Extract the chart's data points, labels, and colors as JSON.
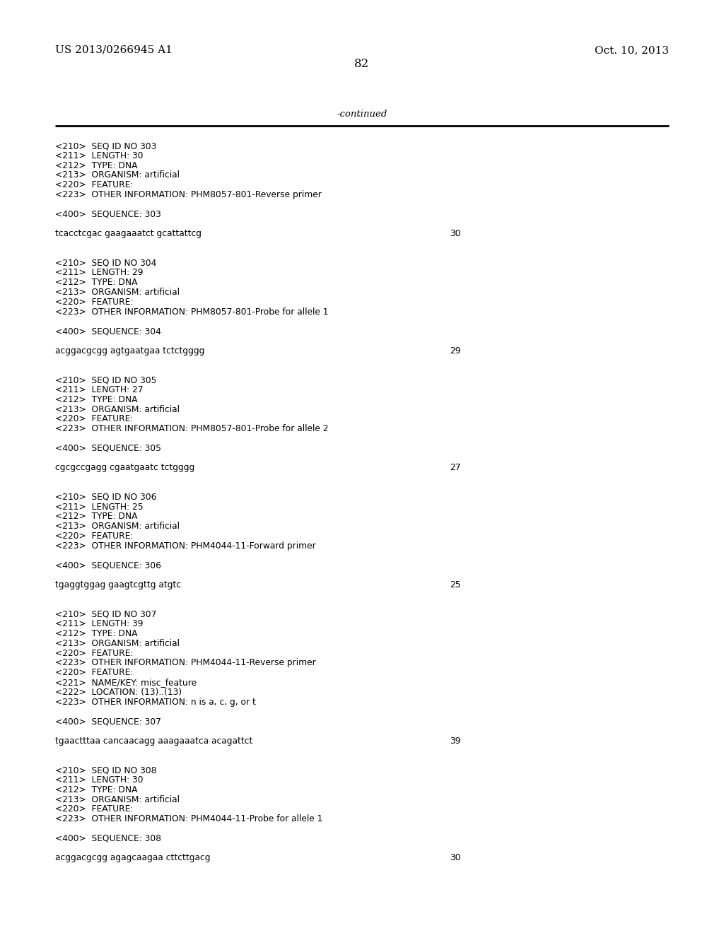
{
  "background_color": "#ffffff",
  "top_left_text": "US 2013/0266945 A1",
  "top_right_text": "Oct. 10, 2013",
  "page_number": "82",
  "continued_text": "-continued",
  "content_lines": [
    [
      "<210>  SEQ ID NO 303",
      ""
    ],
    [
      "<211>  LENGTH: 30",
      ""
    ],
    [
      "<212>  TYPE: DNA",
      ""
    ],
    [
      "<213>  ORGANISM: artificial",
      ""
    ],
    [
      "<220>  FEATURE:",
      ""
    ],
    [
      "<223>  OTHER INFORMATION: PHM8057-801-Reverse primer",
      ""
    ],
    [
      "",
      ""
    ],
    [
      "<400>  SEQUENCE: 303",
      ""
    ],
    [
      "",
      ""
    ],
    [
      "tcacctcgac gaagaaatct gcattattcg",
      "30"
    ],
    [
      "",
      ""
    ],
    [
      "",
      ""
    ],
    [
      "<210>  SEQ ID NO 304",
      ""
    ],
    [
      "<211>  LENGTH: 29",
      ""
    ],
    [
      "<212>  TYPE: DNA",
      ""
    ],
    [
      "<213>  ORGANISM: artificial",
      ""
    ],
    [
      "<220>  FEATURE:",
      ""
    ],
    [
      "<223>  OTHER INFORMATION: PHM8057-801-Probe for allele 1",
      ""
    ],
    [
      "",
      ""
    ],
    [
      "<400>  SEQUENCE: 304",
      ""
    ],
    [
      "",
      ""
    ],
    [
      "acggacgcgg agtgaatgaa tctctgggg",
      "29"
    ],
    [
      "",
      ""
    ],
    [
      "",
      ""
    ],
    [
      "<210>  SEQ ID NO 305",
      ""
    ],
    [
      "<211>  LENGTH: 27",
      ""
    ],
    [
      "<212>  TYPE: DNA",
      ""
    ],
    [
      "<213>  ORGANISM: artificial",
      ""
    ],
    [
      "<220>  FEATURE:",
      ""
    ],
    [
      "<223>  OTHER INFORMATION: PHM8057-801-Probe for allele 2",
      ""
    ],
    [
      "",
      ""
    ],
    [
      "<400>  SEQUENCE: 305",
      ""
    ],
    [
      "",
      ""
    ],
    [
      "cgcgccgagg cgaatgaatc tctgggg",
      "27"
    ],
    [
      "",
      ""
    ],
    [
      "",
      ""
    ],
    [
      "<210>  SEQ ID NO 306",
      ""
    ],
    [
      "<211>  LENGTH: 25",
      ""
    ],
    [
      "<212>  TYPE: DNA",
      ""
    ],
    [
      "<213>  ORGANISM: artificial",
      ""
    ],
    [
      "<220>  FEATURE:",
      ""
    ],
    [
      "<223>  OTHER INFORMATION: PHM4044-11-Forward primer",
      ""
    ],
    [
      "",
      ""
    ],
    [
      "<400>  SEQUENCE: 306",
      ""
    ],
    [
      "",
      ""
    ],
    [
      "tgaggtggag gaagtcgttg atgtc",
      "25"
    ],
    [
      "",
      ""
    ],
    [
      "",
      ""
    ],
    [
      "<210>  SEQ ID NO 307",
      ""
    ],
    [
      "<211>  LENGTH: 39",
      ""
    ],
    [
      "<212>  TYPE: DNA",
      ""
    ],
    [
      "<213>  ORGANISM: artificial",
      ""
    ],
    [
      "<220>  FEATURE:",
      ""
    ],
    [
      "<223>  OTHER INFORMATION: PHM4044-11-Reverse primer",
      ""
    ],
    [
      "<220>  FEATURE:",
      ""
    ],
    [
      "<221>  NAME/KEY: misc_feature",
      ""
    ],
    [
      "<222>  LOCATION: (13)..(13)",
      ""
    ],
    [
      "<223>  OTHER INFORMATION: n is a, c, g, or t",
      ""
    ],
    [
      "",
      ""
    ],
    [
      "<400>  SEQUENCE: 307",
      ""
    ],
    [
      "",
      ""
    ],
    [
      "tgaactttaa cancaacagg aaagaaatca acagattct",
      "39"
    ],
    [
      "",
      ""
    ],
    [
      "",
      ""
    ],
    [
      "<210>  SEQ ID NO 308",
      ""
    ],
    [
      "<211>  LENGTH: 30",
      ""
    ],
    [
      "<212>  TYPE: DNA",
      ""
    ],
    [
      "<213>  ORGANISM: artificial",
      ""
    ],
    [
      "<220>  FEATURE:",
      ""
    ],
    [
      "<223>  OTHER INFORMATION: PHM4044-11-Probe for allele 1",
      ""
    ],
    [
      "",
      ""
    ],
    [
      "<400>  SEQUENCE: 308",
      ""
    ],
    [
      "",
      ""
    ],
    [
      "acggacgcgg agagcaagaa cttcttgacg",
      "30"
    ]
  ]
}
